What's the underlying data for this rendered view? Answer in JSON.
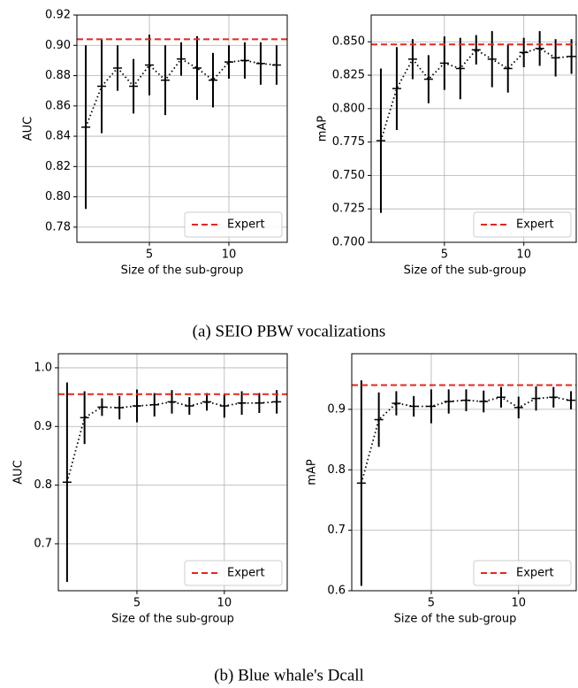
{
  "captions": [
    "(a) SEIO PBW vocalizations",
    "(b) Blue whale's Dcall"
  ],
  "chart_data": [
    {
      "type": "errorbar",
      "xlabel": "Size of the sub-group",
      "ylabel": "AUC",
      "x": [
        1,
        2,
        3,
        4,
        5,
        6,
        7,
        8,
        9,
        10,
        11,
        12,
        13
      ],
      "values": [
        0.846,
        0.873,
        0.885,
        0.873,
        0.887,
        0.877,
        0.891,
        0.885,
        0.877,
        0.889,
        0.89,
        0.888,
        0.887
      ],
      "errors": [
        0.054,
        0.031,
        0.015,
        0.018,
        0.02,
        0.023,
        0.011,
        0.021,
        0.018,
        0.011,
        0.012,
        0.014,
        0.013
      ],
      "color": "#000000",
      "reference": {
        "name": "Expert",
        "value": 0.904,
        "color": "#e8261b"
      },
      "xlim": [
        0.44,
        13.67
      ],
      "ylim": [
        0.77,
        0.92
      ],
      "xticks": [
        5,
        10
      ],
      "yticks": [
        {
          "value": 0.78,
          "label": "0.78"
        },
        {
          "value": 0.8,
          "label": "0.80"
        },
        {
          "value": 0.82,
          "label": "0.82"
        },
        {
          "value": 0.84,
          "label": "0.84"
        },
        {
          "value": 0.86,
          "label": "0.86"
        },
        {
          "value": 0.88,
          "label": "0.88"
        },
        {
          "value": 0.9,
          "label": "0.90"
        },
        {
          "value": 0.92,
          "label": "0.92"
        }
      ],
      "grid": true,
      "legend": "lower right"
    },
    {
      "type": "errorbar",
      "xlabel": "Size of the sub-group",
      "ylabel": "mAP",
      "x": [
        1,
        2,
        3,
        4,
        5,
        6,
        7,
        8,
        9,
        10,
        11,
        12,
        13
      ],
      "values": [
        0.776,
        0.815,
        0.837,
        0.822,
        0.834,
        0.83,
        0.844,
        0.837,
        0.83,
        0.842,
        0.845,
        0.838,
        0.839
      ],
      "errors": [
        0.054,
        0.031,
        0.015,
        0.018,
        0.02,
        0.023,
        0.011,
        0.021,
        0.018,
        0.011,
        0.013,
        0.014,
        0.013
      ],
      "color": "#000000",
      "reference": {
        "name": "Expert",
        "value": 0.848,
        "color": "#e8261b"
      },
      "xlim": [
        0.39,
        13.3
      ],
      "ylim": [
        0.7,
        0.87
      ],
      "xticks": [
        5,
        10
      ],
      "yticks": [
        {
          "value": 0.7,
          "label": "0.700"
        },
        {
          "value": 0.725,
          "label": "0.725"
        },
        {
          "value": 0.75,
          "label": "0.750"
        },
        {
          "value": 0.775,
          "label": "0.775"
        },
        {
          "value": 0.8,
          "label": "0.800"
        },
        {
          "value": 0.825,
          "label": "0.825"
        },
        {
          "value": 0.85,
          "label": "0.850"
        }
      ],
      "grid": true,
      "legend": "lower right"
    },
    {
      "type": "errorbar",
      "xlabel": "Size of the sub-group",
      "ylabel": "AUC",
      "x": [
        1,
        2,
        3,
        4,
        5,
        6,
        7,
        8,
        9,
        10,
        11,
        12,
        13
      ],
      "values": [
        0.805,
        0.915,
        0.933,
        0.932,
        0.935,
        0.937,
        0.942,
        0.935,
        0.942,
        0.935,
        0.94,
        0.94,
        0.942
      ],
      "errors": [
        0.17,
        0.045,
        0.015,
        0.02,
        0.028,
        0.02,
        0.02,
        0.015,
        0.015,
        0.02,
        0.02,
        0.017,
        0.02
      ],
      "color": "#000000",
      "reference": {
        "name": "Expert",
        "value": 0.955,
        "color": "#e8261b"
      },
      "xlim": [
        0.5,
        13.6
      ],
      "ylim": [
        0.62,
        1.024
      ],
      "xticks": [
        5,
        10
      ],
      "yticks": [
        0.7,
        0.8,
        0.9,
        {
          "value": 1,
          "label": "1.0"
        }
      ],
      "grid": true,
      "legend": "lower right"
    },
    {
      "type": "errorbar",
      "xlabel": "Size of the sub-group",
      "ylabel": "mAP",
      "x": [
        1,
        2,
        3,
        4,
        5,
        6,
        7,
        8,
        9,
        10,
        11,
        12,
        13
      ],
      "values": [
        0.778,
        0.883,
        0.91,
        0.905,
        0.905,
        0.913,
        0.915,
        0.913,
        0.92,
        0.903,
        0.918,
        0.92,
        0.915
      ],
      "errors": [
        0.17,
        0.045,
        0.02,
        0.017,
        0.028,
        0.02,
        0.018,
        0.018,
        0.017,
        0.018,
        0.02,
        0.017,
        0.015
      ],
      "color": "#000000",
      "reference": {
        "name": "Expert",
        "value": 0.94,
        "color": "#e8261b"
      },
      "xlim": [
        0.45,
        13.3
      ],
      "ylim": [
        0.6,
        0.992
      ],
      "xticks": [
        5,
        10
      ],
      "yticks": [
        0.6,
        0.7,
        0.8,
        0.9
      ],
      "grid": true,
      "legend": "lower right"
    }
  ]
}
